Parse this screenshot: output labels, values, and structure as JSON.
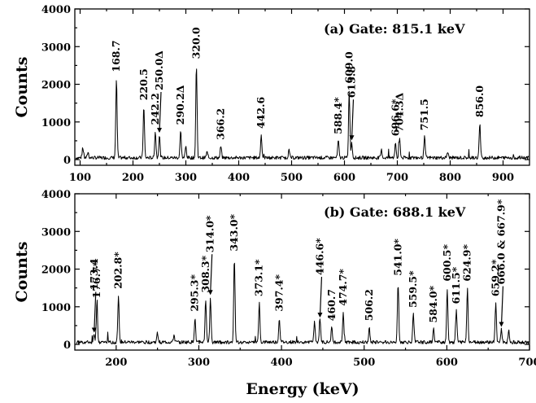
{
  "chart_data": [
    {
      "type": "line",
      "panel": "a",
      "title": "(a)  Gate: 815.1 keV",
      "xlabel": "",
      "ylabel": "Counts",
      "xlim": [
        90,
        950
      ],
      "ylim": [
        -150,
        4000
      ],
      "x_ticks": [
        100,
        200,
        300,
        400,
        500,
        600,
        700,
        800,
        900
      ],
      "y_ticks": [
        0,
        1000,
        2000,
        3000,
        4000
      ],
      "baseline": 50,
      "peaks": [
        {
          "x": 105,
          "y": 300,
          "label": ""
        },
        {
          "x": 115,
          "y": 200,
          "label": ""
        },
        {
          "x": 168.7,
          "y": 2150,
          "label": "168.7"
        },
        {
          "x": 220.5,
          "y": 1400,
          "label": "220.5"
        },
        {
          "x": 242.2,
          "y": 750,
          "label": "242.2"
        },
        {
          "x": 250.0,
          "y": 650,
          "label": "250.0Δ"
        },
        {
          "x": 290.2,
          "y": 750,
          "label": "290.2Δ"
        },
        {
          "x": 300,
          "y": 350,
          "label": ""
        },
        {
          "x": 320.0,
          "y": 2500,
          "label": "320.0"
        },
        {
          "x": 340,
          "y": 200,
          "label": ""
        },
        {
          "x": 366.2,
          "y": 350,
          "label": "366.2"
        },
        {
          "x": 442.6,
          "y": 650,
          "label": "442.6"
        },
        {
          "x": 495,
          "y": 250,
          "label": ""
        },
        {
          "x": 588.4,
          "y": 500,
          "label": "588.4*"
        },
        {
          "x": 609.0,
          "y": 1850,
          "label": "609.0"
        },
        {
          "x": 613.8,
          "y": 450,
          "label": "613.8"
        },
        {
          "x": 670,
          "y": 250,
          "label": ""
        },
        {
          "x": 696.6,
          "y": 450,
          "label": "696.6*"
        },
        {
          "x": 704.3,
          "y": 550,
          "label": "704.3Δ"
        },
        {
          "x": 751.5,
          "y": 600,
          "label": "751.5"
        },
        {
          "x": 795,
          "y": 200,
          "label": ""
        },
        {
          "x": 856.0,
          "y": 950,
          "label": "856.0"
        }
      ]
    },
    {
      "type": "line",
      "panel": "b",
      "title": "(b)  Gate: 688.1 keV",
      "xlabel": "Energy (keV)",
      "ylabel": "Counts",
      "xlim": [
        150,
        700
      ],
      "ylim": [
        -150,
        4000
      ],
      "x_ticks": [
        200,
        300,
        400,
        500,
        600,
        700
      ],
      "y_ticks": [
        0,
        1000,
        2000,
        3000,
        4000
      ],
      "baseline": 60,
      "peaks": [
        {
          "x": 173.4,
          "y": 250,
          "label": "173.4"
        },
        {
          "x": 176.7,
          "y": 1050,
          "label": "176.7*"
        },
        {
          "x": 202.8,
          "y": 1300,
          "label": "202.8*"
        },
        {
          "x": 250,
          "y": 300,
          "label": ""
        },
        {
          "x": 270,
          "y": 250,
          "label": ""
        },
        {
          "x": 295.3,
          "y": 700,
          "label": "295.3*"
        },
        {
          "x": 308.3,
          "y": 1200,
          "label": "308.3*"
        },
        {
          "x": 314.0,
          "y": 1250,
          "label": "314.0*"
        },
        {
          "x": 343.0,
          "y": 2300,
          "label": "343.0*"
        },
        {
          "x": 373.1,
          "y": 1100,
          "label": "373.1*"
        },
        {
          "x": 397.4,
          "y": 700,
          "label": "397.4*"
        },
        {
          "x": 440,
          "y": 600,
          "label": ""
        },
        {
          "x": 446.6,
          "y": 650,
          "label": "446.6*"
        },
        {
          "x": 460.7,
          "y": 450,
          "label": "460.7"
        },
        {
          "x": 474.7,
          "y": 850,
          "label": "474.7*"
        },
        {
          "x": 506.2,
          "y": 450,
          "label": "506.2"
        },
        {
          "x": 541.0,
          "y": 1650,
          "label": "541.0*"
        },
        {
          "x": 559.5,
          "y": 800,
          "label": "559.5*"
        },
        {
          "x": 584.0,
          "y": 400,
          "label": "584.0*"
        },
        {
          "x": 600.5,
          "y": 1500,
          "label": "600.5*"
        },
        {
          "x": 611.5,
          "y": 900,
          "label": "611.5*"
        },
        {
          "x": 624.9,
          "y": 1500,
          "label": "624.9*"
        },
        {
          "x": 659.2,
          "y": 1100,
          "label": "659.2*"
        },
        {
          "x": 666.0,
          "y": 400,
          "label": "666.0 & 667.9*"
        },
        {
          "x": 675,
          "y": 350,
          "label": ""
        }
      ]
    }
  ]
}
